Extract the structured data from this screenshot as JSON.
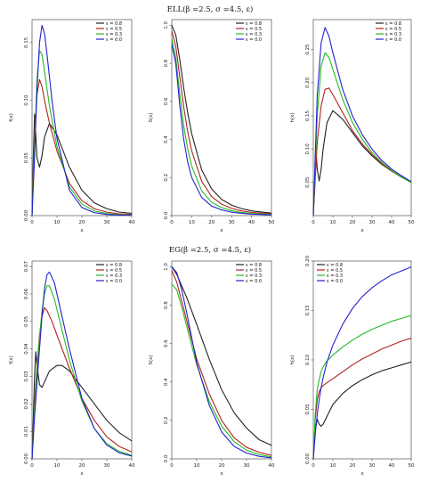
{
  "figure": {
    "colors": [
      "#222222",
      "#b22222",
      "#22bb22",
      "#2222cc"
    ],
    "rows": [
      {
        "title": "ELL(β =2.5, σ =4.5, ε)"
      },
      {
        "title": "EG(β =2.5, σ =4.5, ε)"
      }
    ]
  },
  "chart_data": [
    {
      "type": "line",
      "title": "",
      "xlabel": "x",
      "ylabel": "f(x)",
      "xlim": [
        0,
        40
      ],
      "ylim": [
        0,
        0.17
      ],
      "xticks": [
        "0",
        "10",
        "20",
        "30",
        "40"
      ],
      "yticks": [
        "0.00",
        "0.05",
        "0.10",
        "0.15"
      ],
      "ytick_values": [
        0,
        0.05,
        0.1,
        0.15
      ],
      "legend_position": "top-right",
      "series": [
        {
          "name": "ε = 0.8",
          "x": [
            0,
            0.5,
            1,
            1.5,
            2,
            3,
            4,
            5,
            7,
            10,
            15,
            20,
            25,
            30,
            35,
            40
          ],
          "y": [
            0,
            0.05,
            0.088,
            0.07,
            0.05,
            0.042,
            0.052,
            0.068,
            0.08,
            0.07,
            0.042,
            0.022,
            0.011,
            0.006,
            0.003,
            0.002
          ]
        },
        {
          "name": "ε = 0.5",
          "x": [
            0,
            0.5,
            1,
            2,
            3,
            4,
            5,
            7,
            10,
            15,
            20,
            25,
            30,
            35,
            40
          ],
          "y": [
            0,
            0.035,
            0.07,
            0.105,
            0.118,
            0.112,
            0.1,
            0.08,
            0.056,
            0.028,
            0.013,
            0.006,
            0.003,
            0.0015,
            0.001
          ]
        },
        {
          "name": "ε = 0.3",
          "x": [
            0,
            1,
            2,
            3,
            4,
            5,
            7,
            10,
            15,
            20,
            25,
            30,
            35,
            40
          ],
          "y": [
            0,
            0.06,
            0.118,
            0.143,
            0.14,
            0.125,
            0.095,
            0.06,
            0.025,
            0.01,
            0.004,
            0.0018,
            0.0008,
            0.0004
          ]
        },
        {
          "name": "ε = 0.0",
          "x": [
            0,
            1,
            2,
            3,
            4,
            5,
            6,
            8,
            10,
            15,
            20,
            25,
            30,
            35,
            40
          ],
          "y": [
            0,
            0.05,
            0.11,
            0.15,
            0.165,
            0.158,
            0.14,
            0.1,
            0.067,
            0.022,
            0.007,
            0.0025,
            0.001,
            0.0004,
            0.0002
          ]
        }
      ]
    },
    {
      "type": "line",
      "title": "",
      "xlabel": "x",
      "ylabel": "S(x)",
      "xlim": [
        0,
        50
      ],
      "ylim": [
        0,
        1.03
      ],
      "xticks": [
        "0",
        "10",
        "20",
        "30",
        "40",
        "50"
      ],
      "yticks": [
        "0.0",
        "0.2",
        "0.4",
        "0.6",
        "0.8",
        "1.0"
      ],
      "ytick_values": [
        0,
        0.2,
        0.4,
        0.6,
        0.8,
        1.0
      ],
      "legend_position": "top-right",
      "series": [
        {
          "name": "ε = 0.8",
          "x": [
            0,
            2,
            4,
            6,
            8,
            10,
            15,
            20,
            25,
            30,
            35,
            40,
            50
          ],
          "y": [
            1.0,
            0.95,
            0.82,
            0.67,
            0.54,
            0.43,
            0.24,
            0.14,
            0.085,
            0.055,
            0.037,
            0.025,
            0.013
          ]
        },
        {
          "name": "ε = 0.5",
          "x": [
            0,
            2,
            4,
            6,
            8,
            10,
            15,
            20,
            25,
            30,
            35,
            40,
            50
          ],
          "y": [
            0.97,
            0.89,
            0.73,
            0.57,
            0.44,
            0.34,
            0.18,
            0.1,
            0.06,
            0.038,
            0.025,
            0.017,
            0.009
          ]
        },
        {
          "name": "ε = 0.3",
          "x": [
            0,
            2,
            4,
            6,
            8,
            10,
            15,
            20,
            25,
            30,
            35,
            40,
            50
          ],
          "y": [
            0.93,
            0.83,
            0.64,
            0.47,
            0.35,
            0.26,
            0.13,
            0.07,
            0.042,
            0.026,
            0.017,
            0.011,
            0.006
          ]
        },
        {
          "name": "ε = 0.0",
          "x": [
            0,
            2,
            4,
            6,
            8,
            10,
            15,
            20,
            25,
            30,
            35,
            40,
            50
          ],
          "y": [
            0.9,
            0.8,
            0.58,
            0.4,
            0.28,
            0.2,
            0.095,
            0.05,
            0.03,
            0.018,
            0.012,
            0.008,
            0.004
          ]
        }
      ]
    },
    {
      "type": "line",
      "title": "",
      "xlabel": "x",
      "ylabel": "h(x)",
      "xlim": [
        0,
        50
      ],
      "ylim": [
        0,
        0.295
      ],
      "xticks": [
        "0",
        "10",
        "20",
        "30",
        "40",
        "50"
      ],
      "yticks": [
        "0.05",
        "0.10",
        "0.15",
        "0.20",
        "0.25"
      ],
      "ytick_values": [
        0.05,
        0.1,
        0.15,
        0.2,
        0.25
      ],
      "legend_position": "top-right",
      "series": [
        {
          "name": "ε = 0.8",
          "x": [
            0,
            1,
            1.5,
            2,
            3,
            4,
            5,
            7,
            10,
            15,
            20,
            25,
            30,
            35,
            40,
            45,
            50
          ],
          "y": [
            0,
            0.07,
            0.092,
            0.07,
            0.052,
            0.07,
            0.1,
            0.14,
            0.158,
            0.145,
            0.125,
            0.105,
            0.09,
            0.077,
            0.067,
            0.058,
            0.051
          ]
        },
        {
          "name": "ε = 0.5",
          "x": [
            0,
            2,
            4,
            6,
            8,
            10,
            15,
            20,
            25,
            30,
            35,
            40,
            45,
            50
          ],
          "y": [
            0,
            0.11,
            0.165,
            0.19,
            0.192,
            0.182,
            0.155,
            0.128,
            0.108,
            0.092,
            0.078,
            0.067,
            0.058,
            0.05
          ]
        },
        {
          "name": "ε = 0.3",
          "x": [
            0,
            2,
            4,
            6,
            8,
            10,
            15,
            20,
            25,
            30,
            35,
            40,
            45,
            50
          ],
          "y": [
            0,
            0.15,
            0.225,
            0.245,
            0.238,
            0.22,
            0.175,
            0.14,
            0.115,
            0.095,
            0.08,
            0.068,
            0.058,
            0.05
          ]
        },
        {
          "name": "ε = 0.0",
          "x": [
            0,
            2,
            4,
            6,
            8,
            10,
            15,
            20,
            25,
            30,
            35,
            40,
            45,
            50
          ],
          "y": [
            0,
            0.18,
            0.26,
            0.283,
            0.27,
            0.245,
            0.19,
            0.15,
            0.122,
            0.1,
            0.083,
            0.07,
            0.06,
            0.051
          ]
        }
      ]
    },
    {
      "type": "line",
      "title": "",
      "xlabel": "x",
      "ylabel": "f(x)",
      "xlim": [
        0,
        40
      ],
      "ylim": [
        0,
        0.072
      ],
      "xticks": [
        "0",
        "10",
        "20",
        "30",
        "40"
      ],
      "yticks": [
        "0.00",
        "0.01",
        "0.02",
        "0.03",
        "0.04",
        "0.05",
        "0.06",
        "0.07"
      ],
      "ytick_values": [
        0,
        0.01,
        0.02,
        0.03,
        0.04,
        0.05,
        0.06,
        0.07
      ],
      "legend_position": "top-right",
      "series": [
        {
          "name": "ε = 0.8",
          "x": [
            0,
            1,
            1.5,
            2,
            3,
            4,
            5,
            7,
            10,
            12,
            15,
            20,
            25,
            30,
            35,
            40
          ],
          "y": [
            0,
            0.03,
            0.039,
            0.034,
            0.027,
            0.026,
            0.028,
            0.032,
            0.034,
            0.034,
            0.032,
            0.026,
            0.02,
            0.014,
            0.0095,
            0.0065
          ]
        },
        {
          "name": "ε = 0.5",
          "x": [
            0,
            1,
            2,
            3,
            4,
            5,
            6,
            8,
            10,
            15,
            20,
            25,
            30,
            35,
            40
          ],
          "y": [
            0,
            0.02,
            0.034,
            0.045,
            0.052,
            0.055,
            0.054,
            0.05,
            0.045,
            0.033,
            0.022,
            0.014,
            0.008,
            0.0045,
            0.0025
          ]
        },
        {
          "name": "ε = 0.3",
          "x": [
            0,
            1,
            2,
            3,
            4,
            5,
            6,
            7,
            9,
            12,
            15,
            20,
            25,
            30,
            35,
            40
          ],
          "y": [
            0,
            0.018,
            0.032,
            0.044,
            0.054,
            0.06,
            0.063,
            0.063,
            0.058,
            0.047,
            0.036,
            0.021,
            0.011,
            0.0055,
            0.0027,
            0.0013
          ]
        },
        {
          "name": "ε = 0.0",
          "x": [
            0,
            1,
            2,
            3,
            4,
            5,
            6,
            7,
            9,
            12,
            15,
            20,
            25,
            30,
            35,
            40
          ],
          "y": [
            0,
            0.015,
            0.028,
            0.04,
            0.052,
            0.062,
            0.067,
            0.068,
            0.064,
            0.052,
            0.04,
            0.022,
            0.011,
            0.005,
            0.0022,
            0.001
          ]
        }
      ]
    },
    {
      "type": "line",
      "title": "",
      "xlabel": "x",
      "ylabel": "S(x)",
      "xlim": [
        0,
        40
      ],
      "ylim": [
        0,
        1.03
      ],
      "xticks": [
        "0",
        "10",
        "20",
        "30",
        "40"
      ],
      "yticks": [
        "0.0",
        "0.2",
        "0.4",
        "0.6",
        "0.8",
        "1.0"
      ],
      "ytick_values": [
        0,
        0.2,
        0.4,
        0.6,
        0.8,
        1.0
      ],
      "legend_position": "top-right",
      "series": [
        {
          "name": "ε = 0.8",
          "x": [
            0,
            2,
            4,
            6,
            8,
            10,
            15,
            20,
            25,
            30,
            35,
            40
          ],
          "y": [
            1.0,
            0.96,
            0.9,
            0.84,
            0.77,
            0.7,
            0.52,
            0.36,
            0.24,
            0.16,
            0.1,
            0.07
          ]
        },
        {
          "name": "ε = 0.5",
          "x": [
            0,
            2,
            4,
            6,
            8,
            10,
            15,
            20,
            25,
            30,
            35,
            40
          ],
          "y": [
            0.98,
            0.92,
            0.82,
            0.72,
            0.62,
            0.52,
            0.34,
            0.2,
            0.11,
            0.06,
            0.034,
            0.018
          ]
        },
        {
          "name": "ε = 0.3",
          "x": [
            0,
            2,
            4,
            6,
            8,
            10,
            15,
            20,
            25,
            30,
            35,
            40
          ],
          "y": [
            0.91,
            0.88,
            0.79,
            0.69,
            0.59,
            0.49,
            0.3,
            0.17,
            0.09,
            0.045,
            0.022,
            0.01
          ]
        },
        {
          "name": "ε = 0.0",
          "x": [
            0,
            2,
            4,
            6,
            8,
            10,
            15,
            20,
            25,
            30,
            35,
            40
          ],
          "y": [
            1.0,
            0.97,
            0.88,
            0.76,
            0.63,
            0.5,
            0.28,
            0.14,
            0.065,
            0.03,
            0.013,
            0.005
          ]
        }
      ]
    },
    {
      "type": "line",
      "title": "",
      "xlabel": "x",
      "ylabel": "h(x)",
      "xlim": [
        0,
        50
      ],
      "ylim": [
        0,
        0.2
      ],
      "xticks": [
        "0",
        "10",
        "20",
        "30",
        "40",
        "50"
      ],
      "yticks": [
        "0.00",
        "0.05",
        "0.10",
        "0.15",
        "0.20"
      ],
      "ytick_values": [
        0,
        0.05,
        0.1,
        0.15,
        0.2
      ],
      "legend_position": "top-left",
      "series": [
        {
          "name": "ε = 0.8",
          "x": [
            0,
            1,
            2,
            3,
            4,
            5,
            7,
            10,
            15,
            20,
            25,
            30,
            35,
            40,
            45,
            50
          ],
          "y": [
            0,
            0.03,
            0.04,
            0.035,
            0.033,
            0.035,
            0.043,
            0.055,
            0.066,
            0.074,
            0.08,
            0.085,
            0.089,
            0.092,
            0.095,
            0.098
          ]
        },
        {
          "name": "ε = 0.5",
          "x": [
            0,
            1,
            2,
            3,
            4,
            5,
            7,
            10,
            15,
            20,
            25,
            30,
            35,
            40,
            45,
            50
          ],
          "y": [
            0,
            0.04,
            0.06,
            0.068,
            0.072,
            0.074,
            0.077,
            0.081,
            0.088,
            0.095,
            0.101,
            0.106,
            0.111,
            0.115,
            0.119,
            0.122
          ]
        },
        {
          "name": "ε = 0.3",
          "x": [
            0,
            1,
            2,
            3,
            4,
            5,
            7,
            10,
            15,
            20,
            25,
            30,
            35,
            40,
            45,
            50
          ],
          "y": [
            0,
            0.045,
            0.07,
            0.08,
            0.088,
            0.093,
            0.099,
            0.105,
            0.113,
            0.12,
            0.126,
            0.131,
            0.135,
            0.139,
            0.142,
            0.145
          ]
        },
        {
          "name": "ε = 0.0",
          "x": [
            0,
            1,
            2,
            3,
            4,
            5,
            7,
            10,
            15,
            20,
            25,
            30,
            35,
            40,
            45,
            50
          ],
          "y": [
            0,
            0.025,
            0.045,
            0.06,
            0.072,
            0.082,
            0.098,
            0.115,
            0.136,
            0.152,
            0.164,
            0.173,
            0.18,
            0.186,
            0.19,
            0.194
          ]
        }
      ]
    }
  ]
}
